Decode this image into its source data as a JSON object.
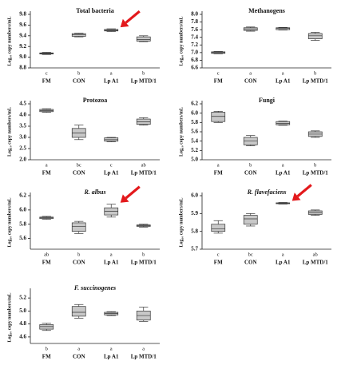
{
  "chart_data": [
    {
      "type": "box",
      "title": "Total bacteria",
      "ylabel": "Log₁₀ copy numbers/mL",
      "categories": [
        "FM",
        "CON",
        "Lp A1",
        "Lp MTD/1"
      ],
      "letters": [
        "c",
        "b",
        "a",
        "b"
      ],
      "min": [
        9.05,
        9.38,
        9.48,
        9.29
      ],
      "q1": [
        9.06,
        9.39,
        9.49,
        9.3
      ],
      "median": [
        9.07,
        9.42,
        9.5,
        9.33
      ],
      "q3": [
        9.08,
        9.44,
        9.52,
        9.38
      ],
      "max": [
        9.09,
        9.45,
        9.53,
        9.4
      ],
      "ylim": [
        8.8,
        9.8
      ],
      "yticks": [
        8.8,
        {
          "value": 9,
          "label": "9.0"
        },
        9.2,
        9.4,
        9.6,
        9.8
      ],
      "arrow": "Lp A1",
      "color": "#c8c8c8"
    },
    {
      "type": "box",
      "title": "Methanogens",
      "ylabel": "Log₁₀ copy numbers/mL",
      "categories": [
        "FM",
        "CON",
        "Lp A1",
        "Lp MTD/1"
      ],
      "letters": [
        "c",
        "a",
        "a",
        "b"
      ],
      "min": [
        6.97,
        7.56,
        7.59,
        7.32
      ],
      "q1": [
        6.98,
        7.58,
        7.6,
        7.36
      ],
      "median": [
        7.0,
        7.62,
        7.63,
        7.44
      ],
      "q3": [
        7.02,
        7.65,
        7.65,
        7.5
      ],
      "max": [
        7.03,
        7.67,
        7.66,
        7.53
      ],
      "ylim": [
        6.6,
        8.0
      ],
      "yticks": [
        6.6,
        6.8,
        {
          "value": 7,
          "label": "7.0"
        },
        7.2,
        7.4,
        7.6,
        7.8,
        {
          "value": 8,
          "label": "8.0"
        }
      ],
      "color": "#c8c8c8"
    },
    {
      "type": "box",
      "title": "Protozoa",
      "ylabel": "Log₁₀ copy numbers/mL",
      "categories": [
        "FM",
        "CON",
        "Lp A1",
        "Lp MTD/1"
      ],
      "letters": [
        "a",
        "bc",
        "c",
        "ab"
      ],
      "min": [
        4.12,
        2.9,
        2.8,
        3.55
      ],
      "q1": [
        4.15,
        3.0,
        2.83,
        3.58
      ],
      "median": [
        4.2,
        3.2,
        2.9,
        3.7
      ],
      "q3": [
        4.25,
        3.4,
        2.98,
        3.82
      ],
      "max": [
        4.28,
        3.55,
        3.0,
        3.88
      ],
      "ylim": [
        2.0,
        4.5
      ],
      "yticks": [
        {
          "value": 2,
          "label": "2.0"
        },
        2.5,
        {
          "value": 3,
          "label": "3.0"
        },
        3.5,
        {
          "value": 4,
          "label": "4.0"
        },
        4.5
      ],
      "color": "#c8c8c8"
    },
    {
      "type": "box",
      "title": "Fungi",
      "ylabel": "Log₁₀ copy numbers/mL",
      "categories": [
        "FM",
        "CON",
        "Lp A1",
        "Lp MTD/1"
      ],
      "letters": [
        "a",
        "b",
        "a",
        "b"
      ],
      "min": [
        5.8,
        5.3,
        5.74,
        5.48
      ],
      "q1": [
        5.82,
        5.32,
        5.75,
        5.5
      ],
      "median": [
        5.93,
        5.4,
        5.78,
        5.55
      ],
      "q3": [
        6.02,
        5.48,
        5.82,
        5.6
      ],
      "max": [
        6.04,
        5.52,
        5.83,
        5.62
      ],
      "ylim": [
        5.0,
        6.2
      ],
      "yticks": [
        {
          "value": 5,
          "label": "5.0"
        },
        5.2,
        5.4,
        5.6,
        5.8,
        {
          "value": 6,
          "label": "6.0"
        },
        6.2
      ],
      "color": "#c8c8c8"
    },
    {
      "type": "box",
      "title": "R. albus",
      "italic_title": true,
      "ylabel": "Log₁₀ copy numbers/mL",
      "categories": [
        "FM",
        "CON",
        "Lp A1",
        "Lp MTD/1"
      ],
      "letters": [
        "ab",
        "b",
        "a",
        "b"
      ],
      "min": [
        5.87,
        5.67,
        5.9,
        5.76
      ],
      "q1": [
        5.88,
        5.7,
        5.93,
        5.77
      ],
      "median": [
        5.89,
        5.77,
        5.98,
        5.78
      ],
      "q3": [
        5.9,
        5.82,
        6.03,
        5.79
      ],
      "max": [
        5.91,
        5.84,
        6.08,
        5.8
      ],
      "ylim": [
        5.45,
        6.2
      ],
      "yticks": [
        5.6,
        5.8,
        {
          "value": 6,
          "label": "6.0"
        },
        6.2
      ],
      "arrow": "Lp A1",
      "color": "#c8c8c8"
    },
    {
      "type": "box",
      "title": "R. flavefaciens",
      "italic_title": true,
      "ylabel": "Log₁₀ copy numbers/mL",
      "categories": [
        "FM",
        "CON",
        "Lp A1",
        "Lp MTD/1"
      ],
      "letters": [
        "c",
        "bc",
        "a",
        "ab"
      ],
      "min": [
        5.79,
        5.83,
        5.953,
        5.89
      ],
      "q1": [
        5.8,
        5.84,
        5.955,
        5.895
      ],
      "median": [
        5.815,
        5.87,
        5.958,
        5.905
      ],
      "q3": [
        5.84,
        5.89,
        5.96,
        5.915
      ],
      "max": [
        5.86,
        5.9,
        5.962,
        5.92
      ],
      "ylim": [
        5.7,
        6.0
      ],
      "yticks": [
        5.7,
        5.8,
        5.9,
        {
          "value": 6,
          "label": "6.0"
        }
      ],
      "arrow": "Lp A1",
      "color": "#c8c8c8"
    },
    {
      "type": "box",
      "title": "F. succinogenes",
      "italic_title": true,
      "ylabel": "Log₁₀ copy numbers/mL",
      "categories": [
        "FM",
        "CON",
        "Lp A1",
        "Lp MTD/1"
      ],
      "letters": [
        "b",
        "a",
        "a",
        "a"
      ],
      "min": [
        4.7,
        4.89,
        4.93,
        4.84
      ],
      "q1": [
        4.72,
        4.92,
        4.94,
        4.86
      ],
      "median": [
        4.76,
        4.98,
        4.96,
        4.93
      ],
      "q3": [
        4.79,
        5.07,
        4.98,
        5.0
      ],
      "max": [
        4.81,
        5.1,
        4.99,
        5.06
      ],
      "ylim": [
        4.5,
        5.3
      ],
      "yticks": [
        4.6,
        4.8,
        {
          "value": 5,
          "label": "5.0"
        },
        5.2
      ],
      "color": "#c8c8c8"
    }
  ]
}
